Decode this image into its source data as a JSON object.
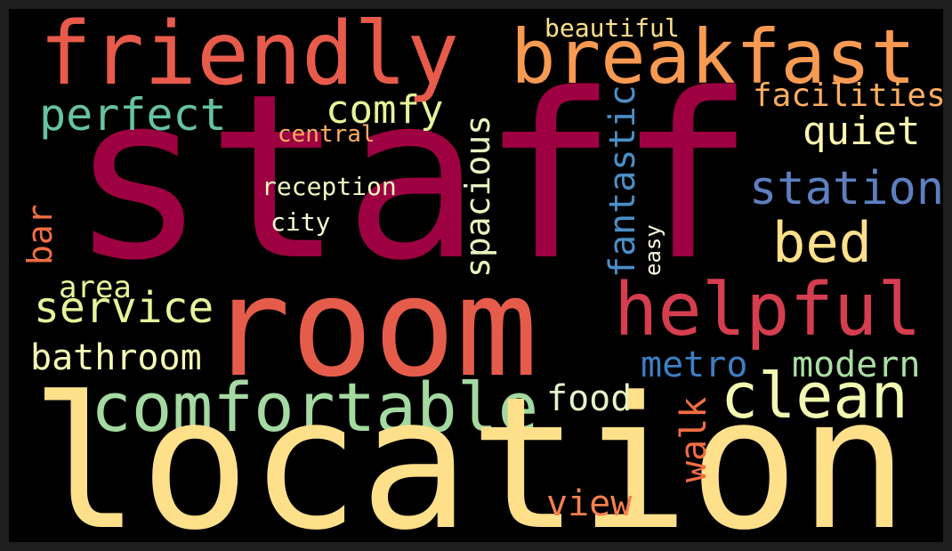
{
  "colors": {
    "frame": "#1e1e1e",
    "background": "#000000"
  },
  "words": {
    "staff": {
      "text": "staff",
      "color": "#9e0142"
    },
    "location": {
      "text": "location",
      "color": "#fee08b"
    },
    "room": {
      "text": "room",
      "color": "#e65c4b"
    },
    "friendly": {
      "text": "friendly",
      "color": "#e85b4b"
    },
    "breakfast": {
      "text": "breakfast",
      "color": "#f89a52"
    },
    "comfortable": {
      "text": "comfortable",
      "color": "#a4d9a1"
    },
    "helpful": {
      "text": "helpful",
      "color": "#d53e4f"
    },
    "clean": {
      "text": "clean",
      "color": "#f2f9b0"
    },
    "bed": {
      "text": "bed",
      "color": "#fee08b"
    },
    "station": {
      "text": "station",
      "color": "#5e7fc0"
    },
    "perfect": {
      "text": "perfect",
      "color": "#66c2a5"
    },
    "service": {
      "text": "service",
      "color": "#e6f598"
    },
    "quiet": {
      "text": "quiet",
      "color": "#fff7b2"
    },
    "facilities": {
      "text": "facilities",
      "color": "#fdae61"
    },
    "comfy": {
      "text": "comfy",
      "color": "#e6f598"
    },
    "bathroom": {
      "text": "bathroom",
      "color": "#f6fbb6"
    },
    "modern": {
      "text": "modern",
      "color": "#abdda4"
    },
    "metro": {
      "text": "metro",
      "color": "#3d7fc3"
    },
    "food": {
      "text": "food",
      "color": "#e6f5c8"
    },
    "view": {
      "text": "view",
      "color": "#f4814d"
    },
    "area": {
      "text": "area",
      "color": "#e6f598"
    },
    "reception": {
      "text": "reception",
      "color": "#f2f9c0"
    },
    "city": {
      "text": "city",
      "color": "#f6fbd0"
    },
    "central": {
      "text": "central",
      "color": "#fdae61"
    },
    "beautiful": {
      "text": "beautiful",
      "color": "#fee08b"
    },
    "bar": {
      "text": "bar",
      "color": "#f46d43"
    },
    "spacious": {
      "text": "spacious",
      "color": "#e6f5c0"
    },
    "fantastic": {
      "text": "fantastic",
      "color": "#4a8fc7"
    },
    "easy": {
      "text": "easy",
      "color": "#fffbe0"
    },
    "walk": {
      "text": "walk",
      "color": "#f46d43"
    }
  }
}
